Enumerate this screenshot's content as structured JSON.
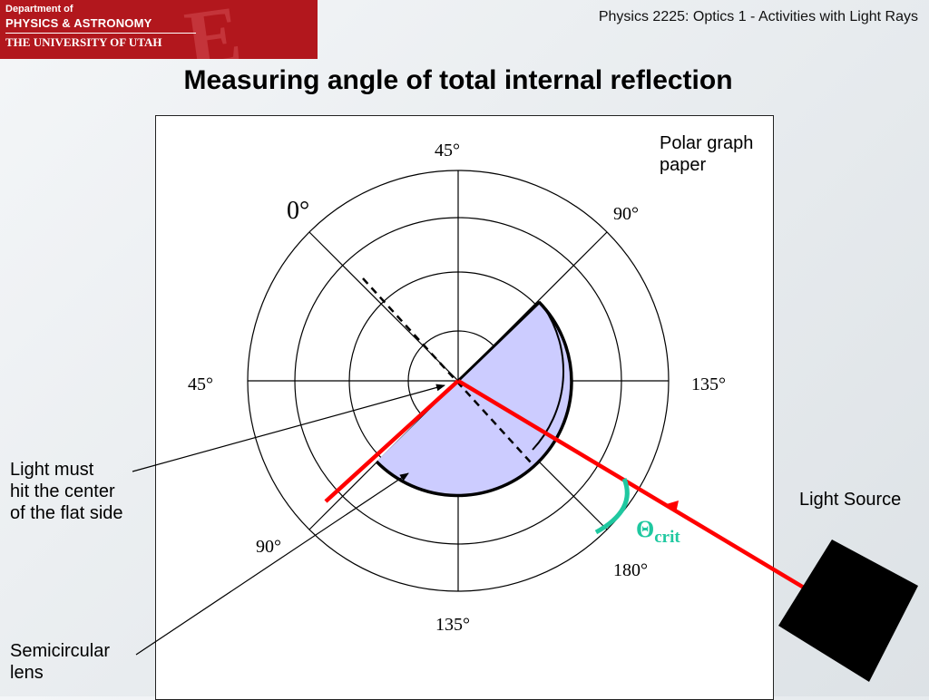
{
  "header": {
    "logo": {
      "line1": "Department of",
      "line2": "PHYSICS & ASTRONOMY",
      "line3": "THE UNIVERSITY OF UTAH"
    },
    "course": "Physics 2225: Optics 1 - Activities with Light Rays"
  },
  "slide": {
    "title": "Measuring angle of total internal reflection"
  },
  "diagram": {
    "angles": {
      "top": "45°",
      "zero": "0°",
      "upper_right": "90°",
      "left": "45°",
      "right": "135°",
      "lower_left": "90°",
      "lower_right": "180°",
      "bottom": "135°"
    },
    "theta_symbol": "Θ",
    "theta_sub": "crit",
    "colors": {
      "ray": "#ff0000",
      "lens_fill": "#ccccff",
      "theta": "#1fc8a0"
    }
  },
  "labels": {
    "polar_paper": [
      "Polar graph",
      "paper"
    ],
    "light_must": [
      "Light must",
      "hit the center",
      "of the flat side"
    ],
    "light_source": "Light Source",
    "semicircular": [
      "Semicircular",
      "lens"
    ]
  }
}
